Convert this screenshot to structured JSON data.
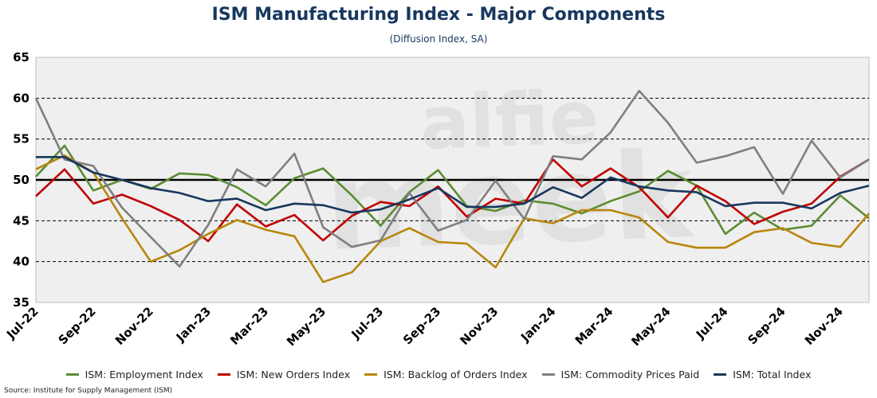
{
  "header": {
    "title": "ISM Manufacturing Index - Major Components",
    "subtitle": "(Diffusion Index, SA)"
  },
  "watermark": {
    "line1": "alfie",
    "line2": "meek"
  },
  "source": "Source: Institute for Supply Management (ISM)",
  "chart_data": {
    "type": "line",
    "title": "ISM Manufacturing Index - Major Components",
    "subtitle": "(Diffusion Index, SA)",
    "ylim": [
      35,
      65
    ],
    "yticks": [
      35,
      40,
      45,
      50,
      55,
      60,
      65
    ],
    "reference_line": 50,
    "grid": "horizontal dashed",
    "legend_position": "bottom",
    "x": [
      "Jul-22",
      "Aug-22",
      "Sep-22",
      "Oct-22",
      "Nov-22",
      "Dec-22",
      "Jan-23",
      "Feb-23",
      "Mar-23",
      "Apr-23",
      "May-23",
      "Jun-23",
      "Jul-23",
      "Aug-23",
      "Sep-23",
      "Oct-23",
      "Nov-23",
      "Dec-23",
      "Jan-24",
      "Feb-24",
      "Mar-24",
      "Apr-24",
      "May-24",
      "Jun-24",
      "Jul-24",
      "Aug-24",
      "Sep-24",
      "Oct-24",
      "Nov-24",
      "Dec-24"
    ],
    "xtick_labels": [
      "Jul-22",
      "Sep-22",
      "Nov-22",
      "Jan-23",
      "Mar-23",
      "May-23",
      "Jul-23",
      "Sep-23",
      "Nov-23",
      "Jan-24",
      "Mar-24",
      "May-24",
      "Jul-24",
      "Sep-24",
      "Nov-24"
    ],
    "series": [
      {
        "name": "ISM: Employment Index",
        "color": "#5b8c32",
        "values": [
          50.4,
          54.2,
          48.7,
          50.0,
          48.9,
          50.8,
          50.6,
          49.1,
          46.9,
          50.2,
          51.4,
          48.1,
          44.4,
          48.5,
          51.2,
          46.8,
          46.2,
          47.5,
          47.1,
          45.9,
          47.4,
          48.6,
          51.1,
          49.3,
          43.4,
          46.0,
          43.9,
          44.4,
          48.1,
          45.3
        ]
      },
      {
        "name": "ISM: New Orders Index",
        "color": "#c00000",
        "values": [
          48.0,
          51.3,
          47.1,
          48.2,
          46.8,
          45.1,
          42.5,
          47.0,
          44.3,
          45.7,
          42.6,
          45.6,
          47.3,
          46.8,
          49.2,
          45.5,
          47.7,
          47.1,
          52.5,
          49.2,
          51.4,
          49.1,
          45.4,
          49.3,
          47.4,
          44.6,
          46.1,
          47.1,
          50.4,
          52.5
        ]
      },
      {
        "name": "ISM: Backlog of Orders Index",
        "color": "#b8860b",
        "values": [
          51.3,
          53.0,
          50.9,
          45.3,
          40.0,
          41.4,
          43.4,
          45.1,
          43.9,
          43.1,
          37.5,
          38.7,
          42.5,
          44.1,
          42.4,
          42.2,
          39.3,
          45.3,
          44.7,
          46.3,
          46.3,
          45.4,
          42.4,
          41.7,
          41.7,
          43.6,
          44.1,
          42.3,
          41.8,
          45.9
        ]
      },
      {
        "name": "ISM: Commodity Prices Paid",
        "color": "#7f7f7f",
        "values": [
          60.0,
          52.5,
          51.7,
          46.6,
          43.0,
          39.4,
          44.5,
          51.3,
          49.2,
          53.2,
          44.2,
          41.8,
          42.6,
          48.4,
          43.8,
          45.1,
          49.9,
          45.2,
          52.9,
          52.5,
          55.8,
          60.9,
          57.0,
          52.1,
          52.9,
          54.0,
          48.3,
          54.8,
          50.3,
          52.5
        ]
      },
      {
        "name": "ISM: Total Index",
        "color": "#17375e",
        "values": [
          52.8,
          52.8,
          50.9,
          50.0,
          49.0,
          48.4,
          47.4,
          47.7,
          46.3,
          47.1,
          46.9,
          46.0,
          46.4,
          47.6,
          49.0,
          46.7,
          46.7,
          47.1,
          49.1,
          47.8,
          50.3,
          49.2,
          48.7,
          48.5,
          46.8,
          47.2,
          47.2,
          46.5,
          48.4,
          49.3
        ]
      }
    ]
  }
}
